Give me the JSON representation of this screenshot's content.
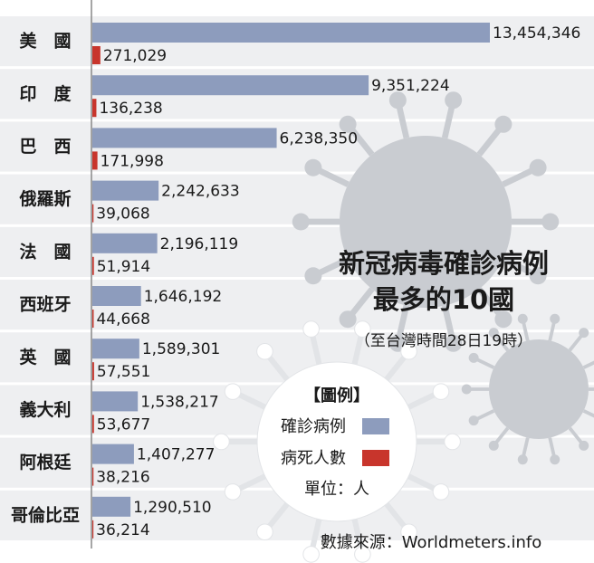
{
  "chart_data": {
    "type": "bar",
    "orientation": "horizontal",
    "title": [
      "新冠病毒確診病例",
      "最多的10國"
    ],
    "subtitle": "（至台灣時間28日19時）",
    "categories": [
      "美　國",
      "印　度",
      "巴　西",
      "俄羅斯",
      "法　國",
      "西班牙",
      "英　國",
      "義大利",
      "阿根廷",
      "哥倫比亞"
    ],
    "series": [
      {
        "name": "確診病例",
        "color": "#8d9cbd",
        "values": [
          13454346,
          9351224,
          6238350,
          2242633,
          2196119,
          1646192,
          1589301,
          1538217,
          1407277,
          1290510
        ],
        "value_labels": [
          "13,454,346",
          "9,351,224",
          "6,238,350",
          "2,242,633",
          "2,196,119",
          "1,646,192",
          "1,589,301",
          "1,538,217",
          "1,407,277",
          "1,290,510"
        ]
      },
      {
        "name": "病死人數",
        "color": "#c8352c",
        "values": [
          271029,
          136238,
          171998,
          39068,
          51914,
          44668,
          57551,
          53677,
          38216,
          36214
        ],
        "value_labels": [
          "271,029",
          "136,238",
          "171,998",
          "39,068",
          "51,914",
          "44,668",
          "57,551",
          "53,677",
          "38,216",
          "36,214"
        ]
      }
    ],
    "legend_title": "【圖例】",
    "unit": "單位：人",
    "source": "數據來源：Worldmeters.info"
  }
}
